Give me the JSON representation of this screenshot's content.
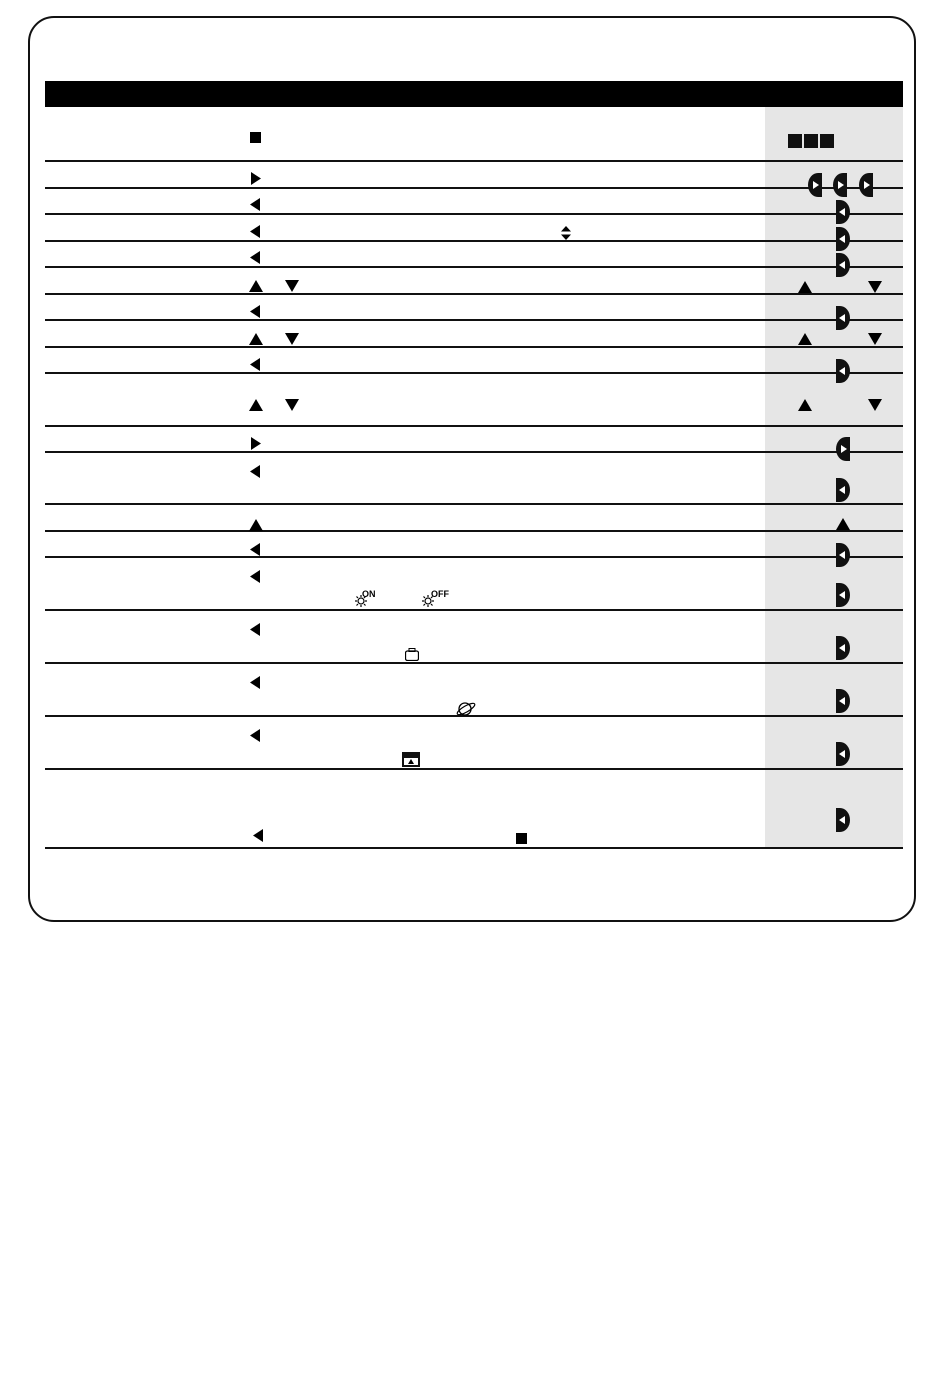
{
  "colors": {
    "accent": "#000000",
    "column_shade": "#e6e6e6"
  },
  "rows": [
    {
      "left": [
        "stop-square-icon"
      ],
      "right": [
        "square-button-icon",
        "square-button-icon",
        "square-button-icon"
      ]
    },
    {
      "left": [
        "triangle-right-icon"
      ],
      "right": [
        "right-half-button-icon",
        "right-half-button-icon",
        "right-half-button-icon"
      ]
    },
    {
      "left": [
        "triangle-left-icon"
      ],
      "right": [
        "left-half-button-icon"
      ]
    },
    {
      "left": [
        "triangle-left-icon",
        "up-down-arrows-icon"
      ],
      "right": [
        "left-half-button-icon"
      ]
    },
    {
      "left": [
        "triangle-left-icon"
      ],
      "right": [
        "left-half-button-icon"
      ]
    },
    {
      "left": [
        "triangle-up-icon",
        "triangle-down-icon"
      ],
      "right": [
        "triangle-up-icon",
        "triangle-down-icon"
      ]
    },
    {
      "left": [
        "triangle-left-icon"
      ],
      "right": [
        "left-half-button-icon"
      ]
    },
    {
      "left": [
        "triangle-up-icon",
        "triangle-down-icon"
      ],
      "right": [
        "triangle-up-icon",
        "triangle-down-icon"
      ]
    },
    {
      "left": [
        "triangle-left-icon"
      ],
      "right": [
        "left-half-button-icon"
      ]
    },
    {
      "left": [
        "triangle-up-icon",
        "triangle-down-icon"
      ],
      "right": [
        "triangle-up-icon",
        "triangle-down-icon"
      ]
    },
    {
      "left": [
        "triangle-right-icon"
      ],
      "right": [
        "right-half-button-icon"
      ]
    },
    {
      "left": [
        "triangle-left-icon"
      ],
      "right": [
        "left-half-button-icon"
      ]
    },
    {
      "left": [
        "triangle-up-icon"
      ],
      "right": [
        "triangle-up-icon"
      ]
    },
    {
      "left": [
        "triangle-left-icon"
      ],
      "right": [
        "left-half-button-icon"
      ]
    },
    {
      "left": [
        "triangle-left-icon",
        "sun-icon",
        "sun-icon"
      ],
      "right": [
        "left-half-button-icon"
      ]
    },
    {
      "left": [
        "triangle-left-icon",
        "camera-icon"
      ],
      "right": [
        "left-half-button-icon"
      ]
    },
    {
      "left": [
        "triangle-left-icon",
        "planet-icon"
      ],
      "right": [
        "left-half-button-icon"
      ]
    },
    {
      "left": [
        "triangle-left-icon",
        "picture-icon"
      ],
      "right": [
        "left-half-button-icon"
      ]
    },
    {
      "left": [
        "triangle-left-icon",
        "stop-square-icon"
      ],
      "right": [
        "left-half-button-icon"
      ]
    }
  ],
  "labels": {
    "on": "ON",
    "off": "OFF"
  }
}
